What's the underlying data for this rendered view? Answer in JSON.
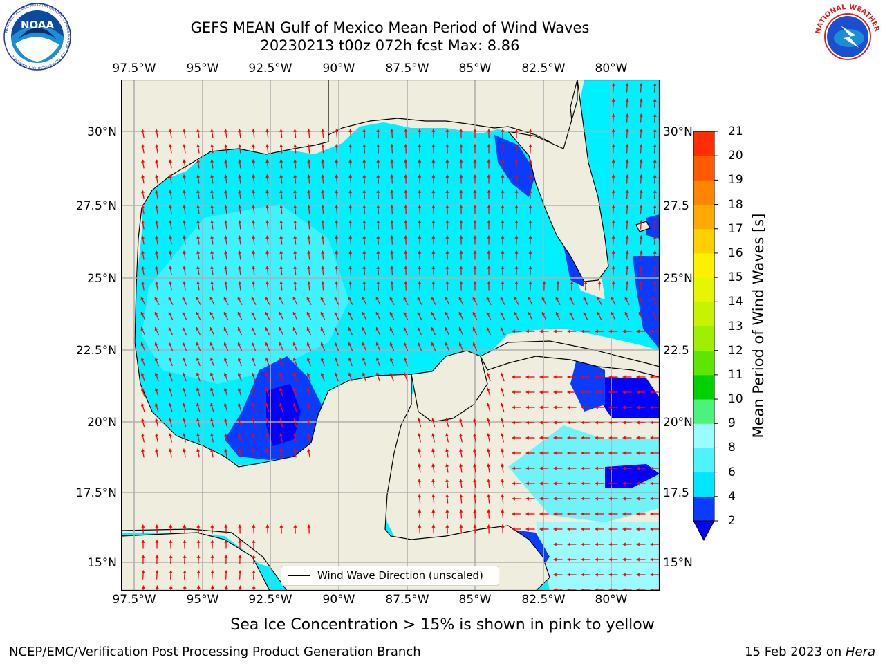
{
  "title": {
    "line1": "GEFS MEAN Gulf of Mexico Mean Period of Wind Waves",
    "line2": "20230213 t00z 072h fcst   Max: 8.86"
  },
  "logos": {
    "left": "NOAA",
    "left_ring": "NATIONAL OCEANIC AND ATMOSPHERIC ADMINISTRATION · U.S. DEPARTMENT OF COMMERCE",
    "right_ring": "NATIONAL WEATHER SERVICE"
  },
  "map": {
    "lon_ticks": [
      "97.5°W",
      "95°W",
      "92.5°W",
      "90°W",
      "87.5°W",
      "85°W",
      "82.5°W",
      "80°W"
    ],
    "lat_ticks_left": [
      "30°N",
      "27.5°N",
      "25°N",
      "22.5°N",
      "20°N",
      "17.5°N",
      "15°N"
    ],
    "lat_ticks_right": [
      "30°N",
      "27.5",
      "25°N",
      "22.5",
      "20°N",
      "17.5",
      "15°N"
    ],
    "land_color": "#efedde",
    "coast_color": "#000000",
    "arrow_color": "#ff0000",
    "grid_color": "#b0b0b0"
  },
  "legend": {
    "label": "Wind Wave Direction (unscaled)"
  },
  "colorbar": {
    "title": "Mean Period of Wind Waves [s]",
    "ticks": [
      "2",
      "4",
      "6",
      "8",
      "9",
      "10",
      "11",
      "12",
      "13",
      "14",
      "15",
      "16",
      "17",
      "18",
      "19",
      "20",
      "21"
    ],
    "colors": [
      "#0a3cff",
      "#00e6ff",
      "#4df4ff",
      "#9bfcff",
      "#4df27a",
      "#00d200",
      "#5fe600",
      "#9fef00",
      "#c7f200",
      "#e6f500",
      "#fff000",
      "#ffd000",
      "#ffaa00",
      "#ff8400",
      "#ff5a00",
      "#ff2d00",
      "#ff0000"
    ],
    "underflow_color": "#0000ff"
  },
  "subtitle": "Sea Ice Concentration > 15% is shown in pink to yellow",
  "footer": {
    "left": "NCEP/EMC/Verification Post Processing Product Generation Branch",
    "right_date": "15 Feb 2023 on ",
    "right_host": "Hera"
  }
}
